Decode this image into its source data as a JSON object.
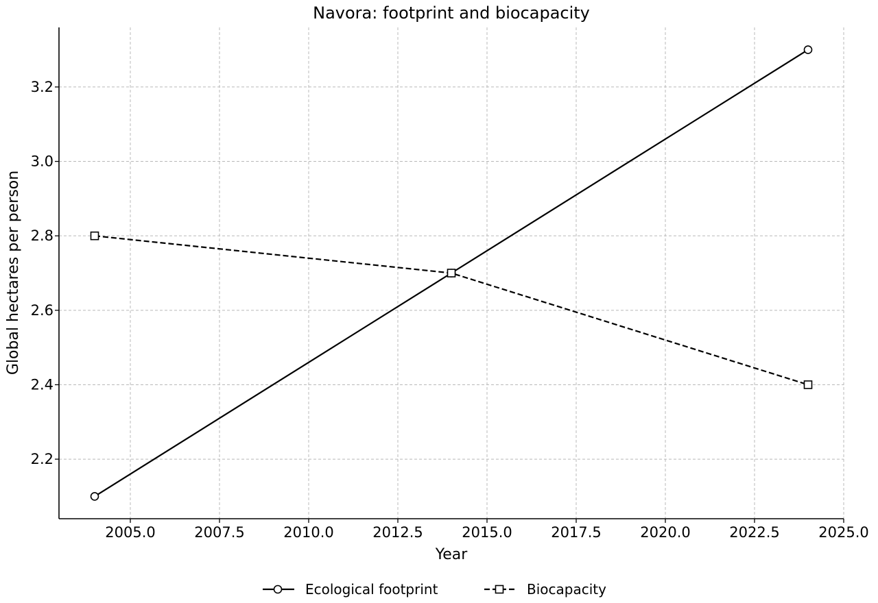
{
  "chart_data": {
    "type": "line",
    "title": "Navora: footprint and biocapacity",
    "xlabel": "Year",
    "ylabel": "Global hectares per person",
    "x": [
      2004,
      2014,
      2024
    ],
    "series": [
      {
        "name": "Ecological footprint",
        "values": [
          2.1,
          2.7,
          3.3
        ],
        "line_style": "solid",
        "marker": "circle",
        "color": "#000000"
      },
      {
        "name": "Biocapacity",
        "values": [
          2.8,
          2.7,
          2.4
        ],
        "line_style": "dashed",
        "marker": "square",
        "color": "#000000"
      }
    ],
    "xlim": [
      2003,
      2025
    ],
    "ylim": [
      2.04,
      3.36
    ],
    "xticks": [
      2005.0,
      2007.5,
      2010.0,
      2012.5,
      2015.0,
      2017.5,
      2020.0,
      2022.5,
      2025.0
    ],
    "xtick_labels": [
      "2005.0",
      "2007.5",
      "2010.0",
      "2012.5",
      "2015.0",
      "2017.5",
      "2020.0",
      "2022.5",
      "2025.0"
    ],
    "yticks": [
      2.2,
      2.4,
      2.6,
      2.8,
      3.0,
      3.2
    ],
    "ytick_labels": [
      "2.2",
      "2.4",
      "2.6",
      "2.8",
      "3.0",
      "3.2"
    ],
    "grid": true,
    "grid_style": "dashed",
    "grid_color": "#b8b8b8",
    "legend_position": "bottom-center"
  }
}
